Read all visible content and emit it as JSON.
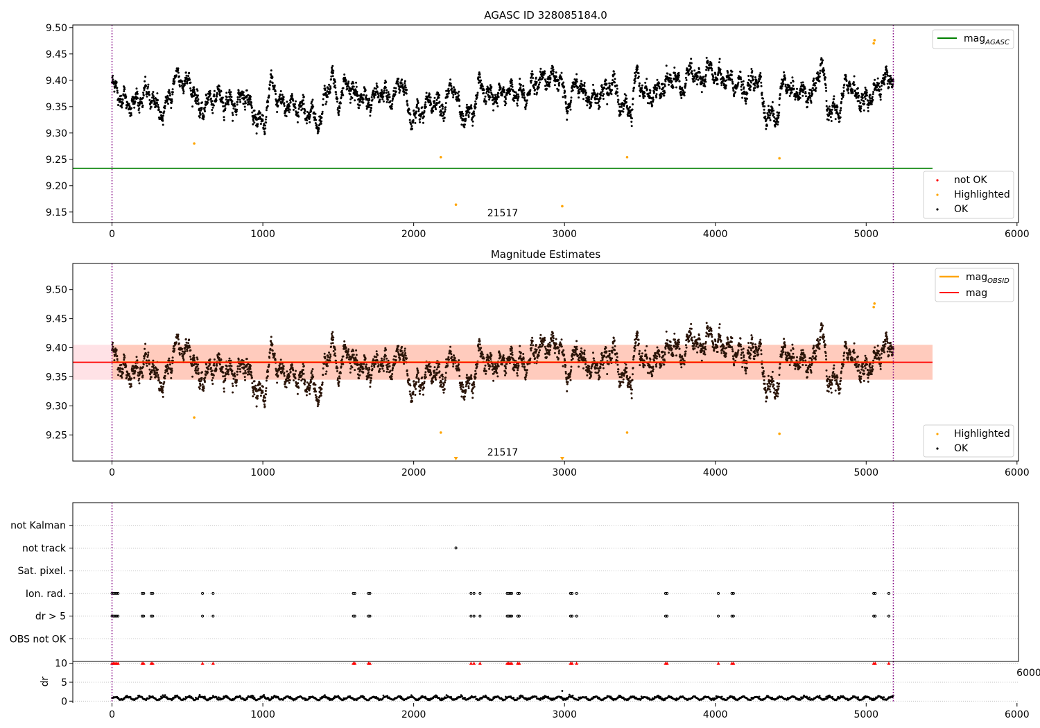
{
  "chart_data": [
    {
      "type": "scatter",
      "title": "AGASC ID 328085184.0",
      "obsid_label": "21517",
      "xlim": [
        -260,
        6010
      ],
      "ylim": [
        9.13,
        9.505
      ],
      "xticks": [
        0,
        1000,
        2000,
        3000,
        4000,
        5000,
        6000
      ],
      "yticks": [
        9.15,
        9.2,
        9.25,
        9.3,
        9.35,
        9.4,
        9.45,
        9.5
      ],
      "vlines": [
        0,
        5180
      ],
      "reference_lines": [
        {
          "name": "mag$_{AGASC}$",
          "name_main": "mag",
          "name_sub": "AGASC",
          "y": 9.233,
          "x0": -260,
          "x1": 5440,
          "color": "#008000"
        }
      ],
      "highlighted_points": [
        {
          "x": 545,
          "y": 9.28
        },
        {
          "x": 2180,
          "y": 9.254
        },
        {
          "x": 2280,
          "y": 9.164
        },
        {
          "x": 2985,
          "y": 9.161
        },
        {
          "x": 3415,
          "y": 9.254
        },
        {
          "x": 4425,
          "y": 9.252
        },
        {
          "x": 5050,
          "y": 9.47
        },
        {
          "x": 5055,
          "y": 9.476
        }
      ],
      "ok_series_profile": {
        "x_range": [
          0,
          5180
        ],
        "anchors": [
          [
            0,
            9.39
          ],
          [
            60,
            9.37
          ],
          [
            100,
            9.355
          ],
          [
            180,
            9.36
          ],
          [
            220,
            9.375
          ],
          [
            260,
            9.37
          ],
          [
            300,
            9.345
          ],
          [
            340,
            9.34
          ],
          [
            380,
            9.365
          ],
          [
            420,
            9.405
          ],
          [
            480,
            9.4
          ],
          [
            540,
            9.385
          ],
          [
            580,
            9.34
          ],
          [
            640,
            9.36
          ],
          [
            700,
            9.37
          ],
          [
            760,
            9.36
          ],
          [
            820,
            9.355
          ],
          [
            880,
            9.375
          ],
          [
            940,
            9.335
          ],
          [
            1000,
            9.315
          ],
          [
            1060,
            9.395
          ],
          [
            1120,
            9.355
          ],
          [
            1200,
            9.35
          ],
          [
            1260,
            9.345
          ],
          [
            1320,
            9.335
          ],
          [
            1380,
            9.32
          ],
          [
            1420,
            9.38
          ],
          [
            1460,
            9.405
          ],
          [
            1500,
            9.36
          ],
          [
            1560,
            9.395
          ],
          [
            1620,
            9.37
          ],
          [
            1700,
            9.36
          ],
          [
            1780,
            9.375
          ],
          [
            1860,
            9.365
          ],
          [
            1920,
            9.4
          ],
          [
            1980,
            9.33
          ],
          [
            2040,
            9.34
          ],
          [
            2120,
            9.36
          ],
          [
            2200,
            9.35
          ],
          [
            2260,
            9.39
          ],
          [
            2320,
            9.33
          ],
          [
            2380,
            9.335
          ],
          [
            2440,
            9.39
          ],
          [
            2500,
            9.37
          ],
          [
            2560,
            9.37
          ],
          [
            2620,
            9.38
          ],
          [
            2680,
            9.375
          ],
          [
            2740,
            9.37
          ],
          [
            2800,
            9.395
          ],
          [
            2880,
            9.405
          ],
          [
            2960,
            9.405
          ],
          [
            3020,
            9.355
          ],
          [
            3080,
            9.395
          ],
          [
            3140,
            9.37
          ],
          [
            3200,
            9.365
          ],
          [
            3260,
            9.38
          ],
          [
            3320,
            9.395
          ],
          [
            3380,
            9.35
          ],
          [
            3440,
            9.345
          ],
          [
            3480,
            9.41
          ],
          [
            3540,
            9.37
          ],
          [
            3600,
            9.375
          ],
          [
            3660,
            9.39
          ],
          [
            3720,
            9.405
          ],
          [
            3780,
            9.385
          ],
          [
            3840,
            9.42
          ],
          [
            3900,
            9.4
          ],
          [
            3960,
            9.42
          ],
          [
            4020,
            9.405
          ],
          [
            4080,
            9.4
          ],
          [
            4140,
            9.395
          ],
          [
            4200,
            9.38
          ],
          [
            4280,
            9.405
          ],
          [
            4340,
            9.335
          ],
          [
            4400,
            9.33
          ],
          [
            4460,
            9.4
          ],
          [
            4520,
            9.375
          ],
          [
            4580,
            9.375
          ],
          [
            4640,
            9.37
          ],
          [
            4700,
            9.425
          ],
          [
            4760,
            9.34
          ],
          [
            4820,
            9.345
          ],
          [
            4880,
            9.4
          ],
          [
            4940,
            9.37
          ],
          [
            5000,
            9.36
          ],
          [
            5060,
            9.38
          ],
          [
            5120,
            9.4
          ],
          [
            5180,
            9.41
          ]
        ]
      },
      "legend": {
        "upper_right": [
          "mag$_{AGASC}$"
        ],
        "lower_right": [
          {
            "label": "not OK",
            "color": "#ff0000"
          },
          {
            "label": "Highlighted",
            "color": "#ffa500"
          },
          {
            "label": "OK",
            "color": "#000000"
          }
        ]
      }
    },
    {
      "type": "scatter",
      "title": "Magnitude Estimates",
      "obsid_label": "21517",
      "xlim": [
        -260,
        6010
      ],
      "ylim": [
        9.205,
        9.545
      ],
      "xticks": [
        0,
        1000,
        2000,
        3000,
        4000,
        5000,
        6000
      ],
      "yticks": [
        9.25,
        9.3,
        9.35,
        9.4,
        9.45,
        9.5
      ],
      "vlines": [
        0,
        5180
      ],
      "bands": [
        {
          "y0": 9.345,
          "y1": 9.405,
          "x0": -260,
          "x1": 5440,
          "color": "#ffb6c1",
          "opacity": 0.4
        },
        {
          "y0": 9.345,
          "y1": 9.405,
          "x0": 0,
          "x1": 5440,
          "color": "#ffa070",
          "opacity": 0.35
        }
      ],
      "reference_lines": [
        {
          "name": "mag$_{OBSID}$",
          "name_main": "mag",
          "name_sub": "OBSID",
          "y": 9.375,
          "x0": 0,
          "x1": 5180,
          "color": "#ffa500"
        },
        {
          "name": "mag",
          "name_main": "mag",
          "name_sub": "",
          "y": 9.375,
          "x0": -260,
          "x1": 5440,
          "color": "#ff0000"
        }
      ],
      "highlighted_points": [
        {
          "x": 545,
          "y": 9.28
        },
        {
          "x": 2180,
          "y": 9.254
        },
        {
          "x": 3415,
          "y": 9.254
        },
        {
          "x": 4425,
          "y": 9.252
        },
        {
          "x": 5050,
          "y": 9.47
        },
        {
          "x": 5055,
          "y": 9.476
        }
      ],
      "offscale_markers": [
        {
          "x": 2280
        },
        {
          "x": 2985
        }
      ],
      "legend": {
        "upper_right": [
          "mag$_{OBSID}$",
          "mag"
        ],
        "lower_right": [
          {
            "label": "Highlighted",
            "color": "#ffa500"
          },
          {
            "label": "OK",
            "color": "#000000"
          }
        ]
      }
    },
    {
      "type": "scatter",
      "title": "",
      "xlim": [
        -260,
        6010
      ],
      "xticks": [
        0,
        1000,
        2000,
        3000,
        4000,
        5000,
        6000
      ],
      "clipped_ticklabel": "6000",
      "vlines": [
        0,
        5180
      ],
      "flag_rows": [
        "not Kalman",
        "not track",
        "Sat. pixel.",
        "Ion. rad.",
        "dr > 5",
        "OBS not OK"
      ],
      "flag_points": {
        "not track": [
          2280
        ],
        "Ion. rad.": [
          0,
          10,
          20,
          30,
          40,
          200,
          210,
          260,
          270,
          600,
          670,
          1600,
          1610,
          1700,
          1710,
          2380,
          2400,
          2440,
          2620,
          2630,
          2640,
          2650,
          2690,
          2700,
          3040,
          3050,
          3080,
          3670,
          3680,
          4020,
          4110,
          4120,
          5050,
          5060,
          5150
        ],
        "dr > 5": [
          0,
          10,
          20,
          30,
          40,
          200,
          210,
          260,
          270,
          600,
          670,
          1600,
          1610,
          1700,
          1710,
          2380,
          2400,
          2440,
          2620,
          2630,
          2640,
          2650,
          2690,
          2700,
          3040,
          3050,
          3080,
          3670,
          3680,
          4020,
          4110,
          4120,
          5050,
          5060,
          5150
        ]
      },
      "dr_panel": {
        "ylabel": "dr",
        "yticks": [
          0,
          5,
          10
        ],
        "ylim": [
          -0.5,
          10.5
        ],
        "clipped_marker_value": 10,
        "outlier": {
          "x": 2985,
          "y": 2.7
        }
      }
    }
  ]
}
